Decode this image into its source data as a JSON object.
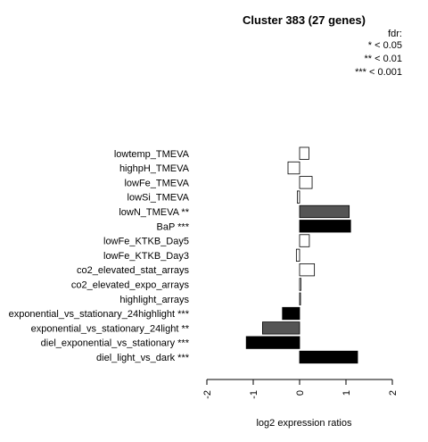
{
  "chart_data": {
    "type": "bar",
    "orientation": "horizontal",
    "title": "Cluster 383 (27 genes)",
    "xlabel": "log2 expression ratios",
    "ylabel": "",
    "xlim": [
      -2,
      2
    ],
    "xticks": [
      -2,
      -1,
      0,
      1,
      2
    ],
    "legend": {
      "title": "fdr:",
      "entries": [
        "* < 0.05",
        "** < 0.01",
        "*** < 0.001"
      ],
      "placement": "top-right"
    },
    "categories": [
      "lowtemp_TMEVA",
      "highpH_TMEVA",
      "lowFe_TMEVA",
      "lowSi_TMEVA",
      "lowN_TMEVA **",
      "BaP ***",
      "lowFe_KTKB_Day5",
      "lowFe_KTKB_Day3",
      "co2_elevated_stat_arrays",
      "co2_elevated_expo_arrays",
      "highlight_arrays",
      "exponential_vs_stationary_24highlight ***",
      "exponential_vs_stationary_24light **",
      "diel_exponential_vs_stationary ***",
      "diel_light_vs_dark ***"
    ],
    "values": [
      0.2,
      -0.25,
      0.27,
      -0.05,
      1.07,
      1.1,
      0.21,
      -0.07,
      0.32,
      0.03,
      0.02,
      -0.37,
      -0.8,
      -1.15,
      1.25
    ],
    "bar_colors": [
      "#ffffff",
      "#ffffff",
      "#ffffff",
      "#ffffff",
      "#555555",
      "#000000",
      "#ffffff",
      "#ffffff",
      "#ffffff",
      "#ffffff",
      "#ffffff",
      "#000000",
      "#555555",
      "#000000",
      "#000000"
    ]
  }
}
